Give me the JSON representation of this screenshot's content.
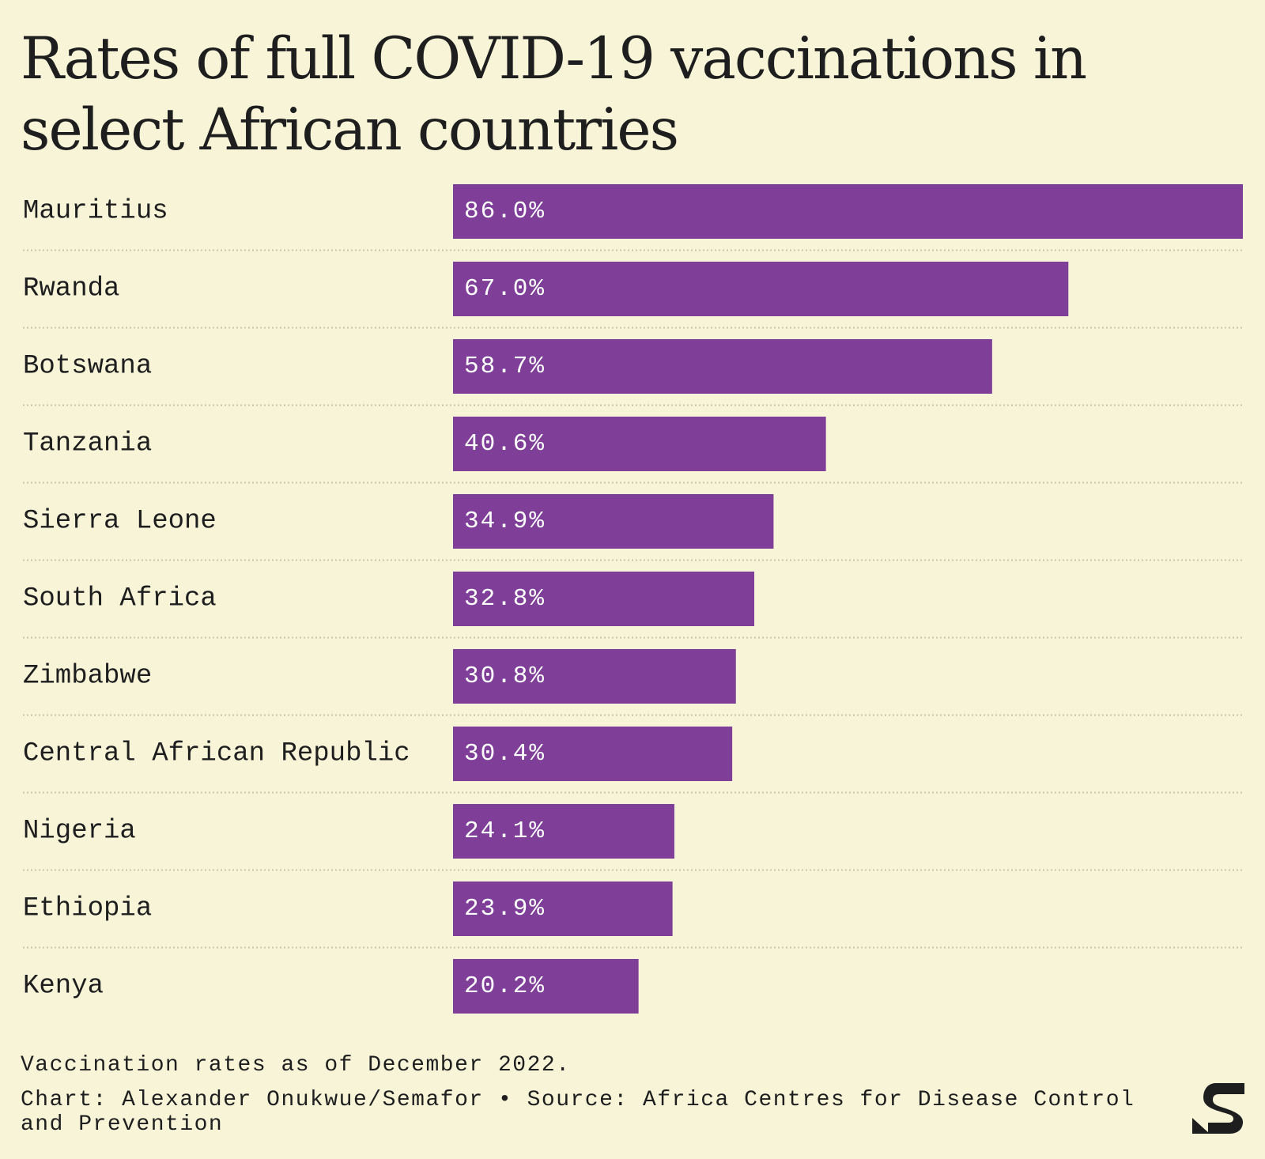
{
  "title": "Rates of full COVID-19 vaccinations in select African countries",
  "footnote": "Vaccination rates as of December 2022.",
  "credit": "Chart: Alexander Onukwue/Semafor • Source: Africa Centres for Disease Control and Prevention",
  "colors": {
    "bar": "#7f3f98",
    "background": "#f7f4d8",
    "text": "#1e1e1e",
    "divider": "#c9c6ad"
  },
  "chart_data": {
    "type": "bar",
    "orientation": "horizontal",
    "categories": [
      "Mauritius",
      "Rwanda",
      "Botswana",
      "Tanzania",
      "Sierra Leone",
      "South Africa",
      "Zimbabwe",
      "Central African Republic",
      "Nigeria",
      "Ethiopia",
      "Kenya"
    ],
    "values": [
      86.0,
      67.0,
      58.7,
      40.6,
      34.9,
      32.8,
      30.8,
      30.4,
      24.1,
      23.9,
      20.2
    ],
    "value_labels": [
      "86.0%",
      "67.0%",
      "58.7%",
      "40.6%",
      "34.9%",
      "32.8%",
      "30.8%",
      "30.4%",
      "24.1%",
      "23.9%",
      "20.2%"
    ],
    "xlim": [
      0,
      86
    ],
    "grid": false,
    "legend": "none"
  }
}
